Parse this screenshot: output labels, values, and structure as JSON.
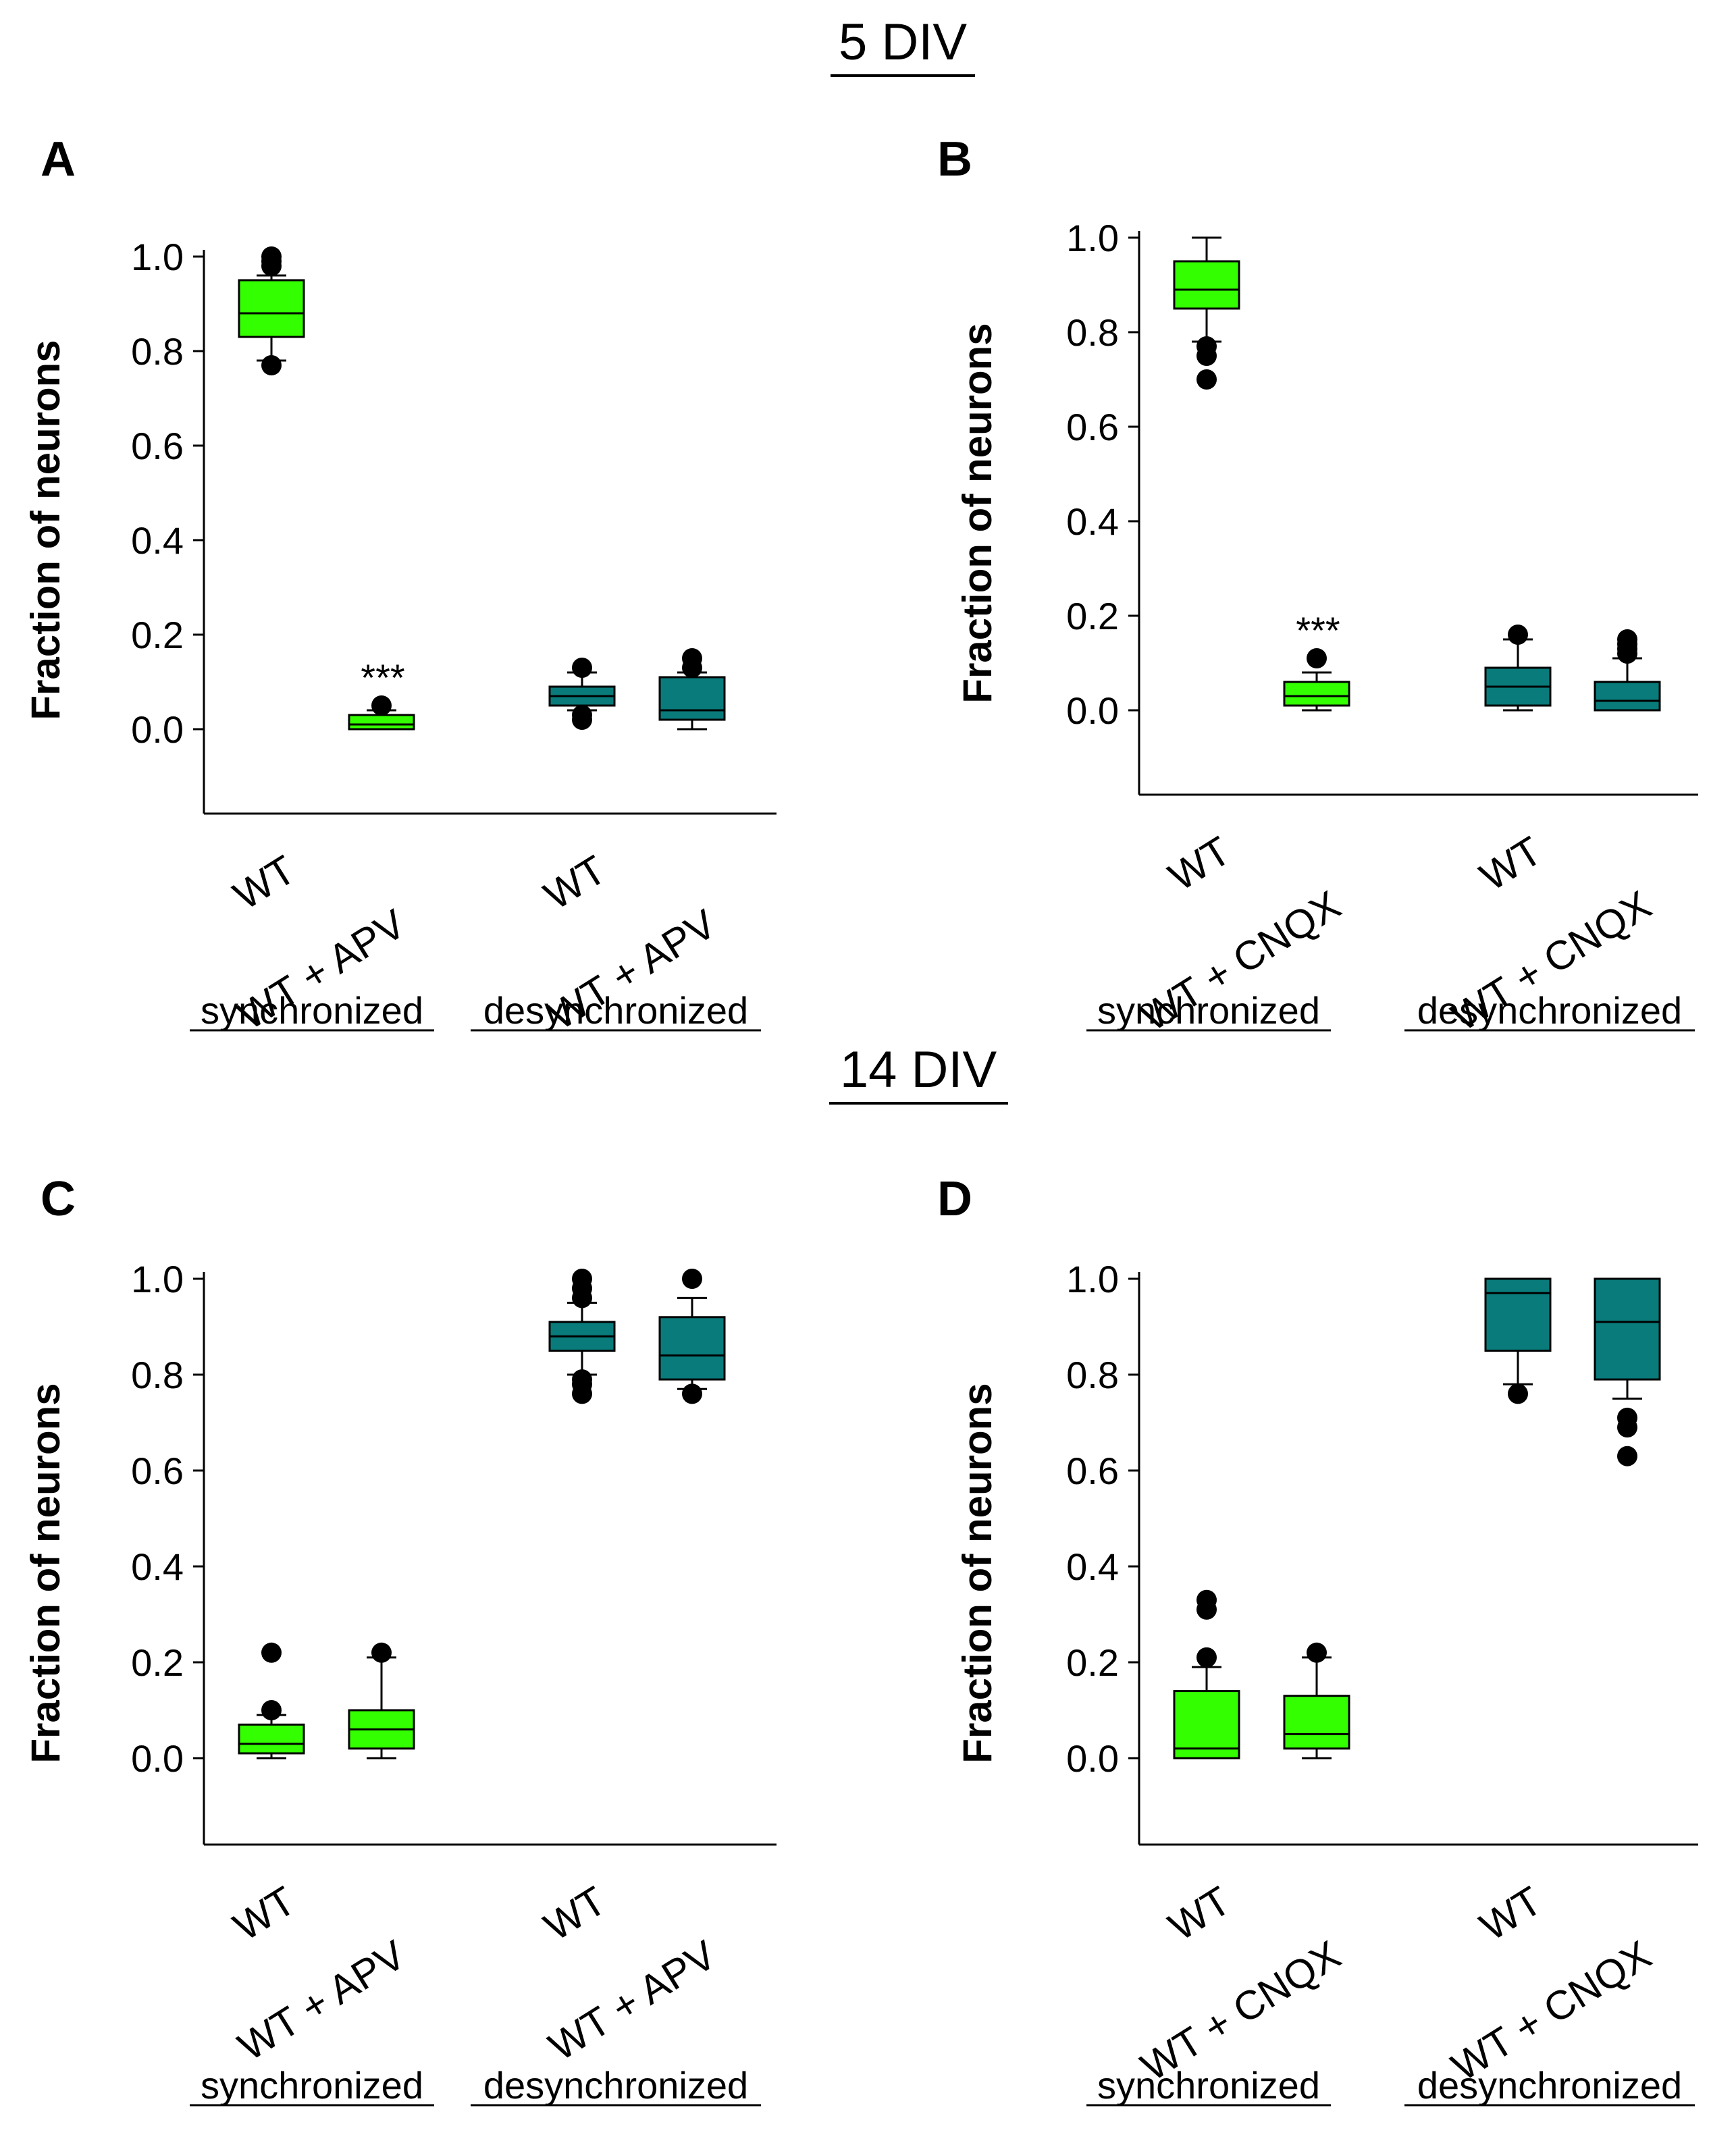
{
  "section_titles": [
    "5 DIV",
    "14 DIV"
  ],
  "colors": {
    "synchronized": "#33ff00",
    "desynchronized": "#0a7b7b",
    "outline": "#000000",
    "background": "#ffffff"
  },
  "chart_data": [
    {
      "panel": "A",
      "type": "box",
      "ylabel": "Fraction of neurons",
      "ylim": [
        -0.18,
        1.02
      ],
      "yticks": [
        0.0,
        0.2,
        0.4,
        0.6,
        0.8,
        1.0
      ],
      "ytick_labels": [
        "0.0",
        "0.2",
        "0.4",
        "0.6",
        "0.8",
        "1.0"
      ],
      "group_labels": [
        "synchronized",
        "desynchronized"
      ],
      "boxes": [
        {
          "label": "WT",
          "group": "synchronized",
          "q1": 0.83,
          "median": 0.88,
          "q3": 0.95,
          "wlow": 0.78,
          "whigh": 0.96,
          "outliers": [
            1.0,
            0.99,
            0.98,
            0.77
          ],
          "annotation": ""
        },
        {
          "label": "WT + APV",
          "group": "synchronized",
          "q1": 0.0,
          "median": 0.01,
          "q3": 0.03,
          "wlow": 0.0,
          "whigh": 0.04,
          "outliers": [
            0.05
          ],
          "annotation": "***"
        },
        {
          "label": "WT",
          "group": "desynchronized",
          "q1": 0.05,
          "median": 0.07,
          "q3": 0.09,
          "wlow": 0.04,
          "whigh": 0.12,
          "outliers": [
            0.13,
            0.02,
            0.03
          ],
          "annotation": ""
        },
        {
          "label": "WT + APV",
          "group": "desynchronized",
          "q1": 0.02,
          "median": 0.04,
          "q3": 0.11,
          "wlow": 0.0,
          "whigh": 0.12,
          "outliers": [
            0.15,
            0.13
          ],
          "annotation": ""
        }
      ]
    },
    {
      "panel": "B",
      "type": "box",
      "ylabel": "Fraction of neurons",
      "ylim": [
        -0.18,
        1.02
      ],
      "yticks": [
        0.0,
        0.2,
        0.4,
        0.6,
        0.8,
        1.0
      ],
      "ytick_labels": [
        "0.0",
        "0.2",
        "0.4",
        "0.6",
        "0.8",
        "1.0"
      ],
      "group_labels": [
        "synchronized",
        "desynchronized"
      ],
      "boxes": [
        {
          "label": "WT",
          "group": "synchronized",
          "q1": 0.85,
          "median": 0.89,
          "q3": 0.95,
          "wlow": 0.78,
          "whigh": 1.0,
          "outliers": [
            0.77,
            0.75,
            0.7
          ],
          "annotation": ""
        },
        {
          "label": "WT + CNQX",
          "group": "synchronized",
          "q1": 0.01,
          "median": 0.03,
          "q3": 0.06,
          "wlow": 0.0,
          "whigh": 0.08,
          "outliers": [
            0.11
          ],
          "annotation": "***"
        },
        {
          "label": "WT",
          "group": "desynchronized",
          "q1": 0.01,
          "median": 0.05,
          "q3": 0.09,
          "wlow": 0.0,
          "whigh": 0.15,
          "outliers": [
            0.16
          ],
          "annotation": ""
        },
        {
          "label": "WT + CNQX",
          "group": "desynchronized",
          "q1": 0.0,
          "median": 0.02,
          "q3": 0.06,
          "wlow": 0.0,
          "whigh": 0.11,
          "outliers": [
            0.15,
            0.14,
            0.13,
            0.12
          ],
          "annotation": ""
        }
      ]
    },
    {
      "panel": "C",
      "type": "box",
      "ylabel": "Fraction of neurons",
      "ylim": [
        -0.18,
        1.02
      ],
      "yticks": [
        0.0,
        0.2,
        0.4,
        0.6,
        0.8,
        1.0
      ],
      "ytick_labels": [
        "0.0",
        "0.2",
        "0.4",
        "0.6",
        "0.8",
        "1.0"
      ],
      "group_labels": [
        "synchronized",
        "desynchronized"
      ],
      "boxes": [
        {
          "label": "WT",
          "group": "synchronized",
          "q1": 0.01,
          "median": 0.03,
          "q3": 0.07,
          "wlow": 0.0,
          "whigh": 0.09,
          "outliers": [
            0.22,
            0.1
          ],
          "annotation": ""
        },
        {
          "label": "WT + APV",
          "group": "synchronized",
          "q1": 0.02,
          "median": 0.06,
          "q3": 0.1,
          "wlow": 0.0,
          "whigh": 0.21,
          "outliers": [
            0.22
          ],
          "annotation": ""
        },
        {
          "label": "WT",
          "group": "desynchronized",
          "q1": 0.85,
          "median": 0.88,
          "q3": 0.91,
          "wlow": 0.8,
          "whigh": 0.95,
          "outliers": [
            1.0,
            0.98,
            0.96,
            0.79,
            0.78,
            0.76
          ],
          "annotation": ""
        },
        {
          "label": "WT + APV",
          "group": "desynchronized",
          "q1": 0.79,
          "median": 0.84,
          "q3": 0.92,
          "wlow": 0.77,
          "whigh": 0.96,
          "outliers": [
            1.0,
            0.76
          ],
          "annotation": ""
        }
      ]
    },
    {
      "panel": "D",
      "type": "box",
      "ylabel": "Fraction of neurons",
      "ylim": [
        -0.18,
        1.02
      ],
      "yticks": [
        0.0,
        0.2,
        0.4,
        0.6,
        0.8,
        1.0
      ],
      "ytick_labels": [
        "0.0",
        "0.2",
        "0.4",
        "0.6",
        "0.8",
        "1.0"
      ],
      "group_labels": [
        "synchronized",
        "desynchronized"
      ],
      "boxes": [
        {
          "label": "WT",
          "group": "synchronized",
          "q1": 0.0,
          "median": 0.02,
          "q3": 0.14,
          "wlow": 0.0,
          "whigh": 0.19,
          "outliers": [
            0.33,
            0.31,
            0.21
          ],
          "annotation": ""
        },
        {
          "label": "WT + CNQX",
          "group": "synchronized",
          "q1": 0.02,
          "median": 0.05,
          "q3": 0.13,
          "wlow": 0.0,
          "whigh": 0.21,
          "outliers": [
            0.22
          ],
          "annotation": ""
        },
        {
          "label": "WT",
          "group": "desynchronized",
          "q1": 0.85,
          "median": 0.97,
          "q3": 1.0,
          "wlow": 0.78,
          "whigh": 1.0,
          "outliers": [
            0.76
          ],
          "annotation": ""
        },
        {
          "label": "WT + CNQX",
          "group": "desynchronized",
          "q1": 0.79,
          "median": 0.91,
          "q3": 1.0,
          "wlow": 0.75,
          "whigh": 1.0,
          "outliers": [
            0.71,
            0.69,
            0.63
          ],
          "annotation": ""
        }
      ]
    }
  ]
}
